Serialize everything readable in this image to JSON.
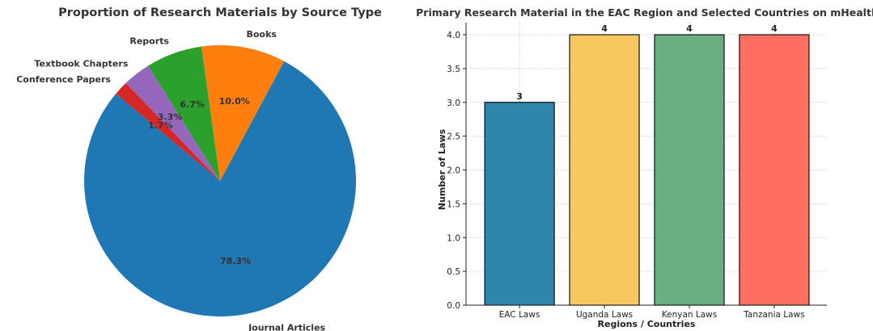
{
  "chart_data": [
    {
      "type": "pie",
      "title": "Proportion of Research Materials by Source Type",
      "slices": [
        {
          "label": "Journal Articles",
          "value": 78.3,
          "pct_label": "78.3%",
          "color": "#1f77b4"
        },
        {
          "label": "Books",
          "value": 10.0,
          "pct_label": "10.0%",
          "color": "#ff7f0e"
        },
        {
          "label": "Reports",
          "value": 6.7,
          "pct_label": "6.7%",
          "color": "#2ca02c"
        },
        {
          "label": "Textbook Chapters",
          "value": 3.3,
          "pct_label": "3.3%",
          "color": "#9467bd"
        },
        {
          "label": "Conference Papers",
          "value": 1.7,
          "pct_label": "1.7%",
          "color": "#d62728"
        }
      ]
    },
    {
      "type": "bar",
      "title": "Primary Research Material in the EAC Region and Selected Countries on mHealth",
      "xlabel": "Regions / Countries",
      "ylabel": "Number of Laws",
      "categories": [
        "EAC Laws",
        "Uganda Laws",
        "Kenyan Laws",
        "Tanzania Laws"
      ],
      "values": [
        3,
        4,
        4,
        4
      ],
      "value_labels": [
        "3",
        "4",
        "4",
        "4"
      ],
      "colors": [
        "#2e86ab",
        "#f6c85f",
        "#6aaf7f",
        "#ff6f61"
      ],
      "ylim": [
        0,
        4.0
      ],
      "yticks": [
        "0.0",
        "0.5",
        "1.0",
        "1.5",
        "2.0",
        "2.5",
        "3.0",
        "3.5",
        "4.0"
      ],
      "grid": true
    }
  ]
}
